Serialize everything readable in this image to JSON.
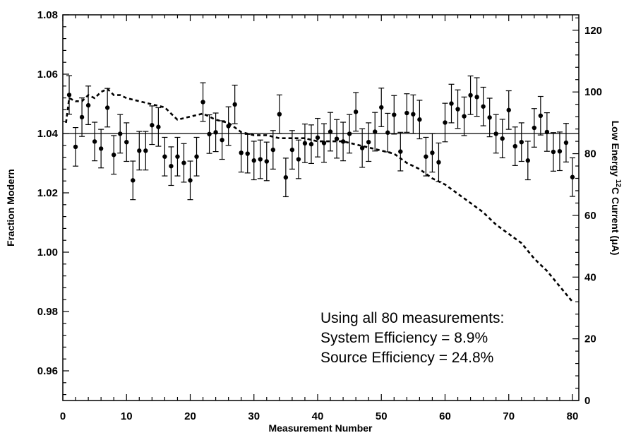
{
  "chart_data": {
    "type": "scatter",
    "xlabel": "Measurement Number",
    "ylabel": "Fraction Modern",
    "y2label": "Low Energy ¹²C Current (μA)",
    "y2label_parts": {
      "pre": "Low Energy ",
      "sup": "12",
      "post": "C Current (μA)"
    },
    "xlim": [
      0,
      81
    ],
    "ylim": [
      0.95,
      1.08
    ],
    "y2lim": [
      0,
      125
    ],
    "x_ticks": [
      0,
      10,
      20,
      30,
      40,
      50,
      60,
      70,
      80
    ],
    "y_ticks": [
      "0.96",
      "0.98",
      "1.00",
      "1.02",
      "1.04",
      "1.06",
      "1.08"
    ],
    "y2_ticks": [
      "0",
      "20",
      "40",
      "60",
      "80",
      "100",
      "120"
    ],
    "grid": false,
    "reference_line": 1.04,
    "annotation": [
      "Using all 80 measurements:",
      "System Efficiency = 8.9%",
      "Source Efficiency = 24.8%"
    ],
    "series": [
      {
        "style": "points-with-error-bars",
        "axis": "left",
        "x": [
          1,
          2,
          3,
          4,
          5,
          6,
          7,
          8,
          9,
          10,
          11,
          12,
          13,
          14,
          15,
          16,
          17,
          18,
          19,
          20,
          21,
          22,
          23,
          24,
          25,
          26,
          27,
          28,
          29,
          30,
          31,
          32,
          33,
          34,
          35,
          36,
          37,
          38,
          39,
          40,
          41,
          42,
          43,
          44,
          45,
          46,
          47,
          48,
          49,
          50,
          51,
          52,
          53,
          54,
          55,
          56,
          57,
          58,
          59,
          60,
          61,
          62,
          63,
          64,
          65,
          66,
          67,
          68,
          69,
          70,
          71,
          72,
          73,
          74,
          75,
          76,
          77,
          78,
          79,
          80
        ],
        "y": [
          1.053,
          1.0355,
          1.0455,
          1.0495,
          1.0373,
          1.0349,
          1.0487,
          1.0328,
          1.0399,
          1.0371,
          1.0242,
          1.0342,
          1.0342,
          1.0428,
          1.0422,
          1.0322,
          1.029,
          1.0322,
          1.0301,
          1.0242,
          1.0322,
          1.0506,
          1.0398,
          1.0404,
          1.0378,
          1.0425,
          1.0498,
          1.0335,
          1.0332,
          1.0309,
          1.0313,
          1.0306,
          1.0345,
          1.0465,
          1.0252,
          1.0345,
          1.0313,
          1.0367,
          1.0364,
          1.0386,
          1.0368,
          1.0406,
          1.0382,
          1.0373,
          1.0399,
          1.0473,
          1.0351,
          1.0371,
          1.0406,
          1.0488,
          1.0403,
          1.0463,
          1.0339,
          1.0469,
          1.0465,
          1.0447,
          1.0322,
          1.0335,
          1.0303,
          1.0437,
          1.0501,
          1.0482,
          1.0458,
          1.0529,
          1.0523,
          1.0491,
          1.0454,
          1.0399,
          1.0383,
          1.0479,
          1.0357,
          1.0371,
          1.0309,
          1.0419,
          1.046,
          1.0405,
          1.0338,
          1.034,
          1.0369,
          1.0253
        ],
        "error": [
          0.0065,
          0.0065,
          0.0065,
          0.0065,
          0.0065,
          0.0065,
          0.0065,
          0.0065,
          0.0065,
          0.0065,
          0.0065,
          0.0065,
          0.0065,
          0.0065,
          0.0065,
          0.0065,
          0.0065,
          0.0065,
          0.0065,
          0.0065,
          0.0065,
          0.0065,
          0.0065,
          0.0065,
          0.0065,
          0.0065,
          0.0065,
          0.0065,
          0.0065,
          0.0065,
          0.0065,
          0.0065,
          0.0065,
          0.0065,
          0.0065,
          0.0065,
          0.0065,
          0.0065,
          0.0065,
          0.0065,
          0.0065,
          0.0065,
          0.0065,
          0.0065,
          0.0065,
          0.0065,
          0.0065,
          0.0065,
          0.0065,
          0.0065,
          0.0065,
          0.0065,
          0.0065,
          0.0065,
          0.0065,
          0.0065,
          0.0065,
          0.0065,
          0.0065,
          0.0065,
          0.0065,
          0.0065,
          0.0065,
          0.0065,
          0.0065,
          0.0065,
          0.0065,
          0.0065,
          0.0065,
          0.0065,
          0.0065,
          0.0065,
          0.0065,
          0.0065,
          0.0065,
          0.0065,
          0.0065,
          0.0065,
          0.0065,
          0.0065
        ]
      },
      {
        "style": "dashed-line",
        "axis": "right",
        "x": [
          0.5,
          1,
          2,
          3,
          4,
          5,
          6,
          7,
          8,
          9,
          10,
          12,
          14,
          16,
          17,
          18,
          20,
          22,
          24,
          26,
          28,
          30,
          32,
          34,
          36,
          38,
          40,
          42,
          44,
          46,
          48,
          50,
          52,
          54,
          56,
          58,
          60,
          62,
          64,
          66,
          68,
          70,
          72,
          74,
          76,
          78,
          80
        ],
        "y": [
          90,
          98,
          97,
          97,
          99,
          98,
          100,
          101,
          99,
          99,
          98,
          97,
          96,
          95,
          93,
          91,
          92,
          93,
          91,
          90,
          87,
          86,
          86,
          85,
          85,
          85,
          84,
          84,
          84,
          83,
          82,
          81,
          80,
          77,
          75,
          72,
          70,
          67,
          64,
          61,
          57,
          54,
          51,
          46,
          42,
          37,
          32
        ]
      }
    ]
  }
}
